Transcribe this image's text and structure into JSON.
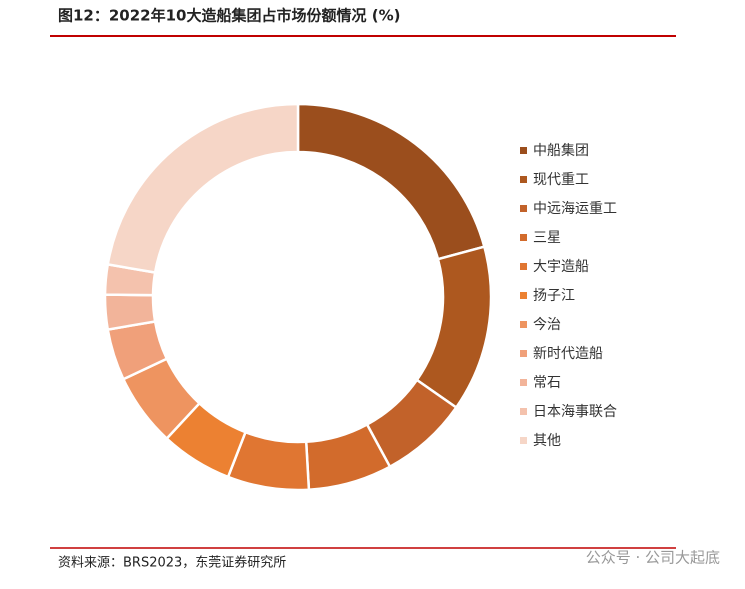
{
  "chart_data": {
    "type": "pie",
    "donut": true,
    "title": "图12：2022年10大造船集团占市场份额情况 (%)",
    "source": "资料来源：BRS2023，东莞证券研究所",
    "watermark": "公众号 · 公司大起底",
    "categories": [
      "中船集团",
      "现代重工",
      "中远海运重工",
      "三星",
      "大宇造船",
      "扬子江",
      "今治",
      "新时代造船",
      "常石",
      "日本海事联合",
      "其他"
    ],
    "values": [
      20.8,
      13.9,
      7.4,
      7.0,
      6.8,
      6.0,
      6.1,
      4.3,
      2.9,
      2.5,
      22.3
    ],
    "colors": [
      "#9b4e1d",
      "#ad581f",
      "#c2622a",
      "#d26b2c",
      "#e07632",
      "#ec8132",
      "#ee9460",
      "#f0a07a",
      "#f2b49a",
      "#f4c2ad",
      "#f6d6c7"
    ]
  }
}
